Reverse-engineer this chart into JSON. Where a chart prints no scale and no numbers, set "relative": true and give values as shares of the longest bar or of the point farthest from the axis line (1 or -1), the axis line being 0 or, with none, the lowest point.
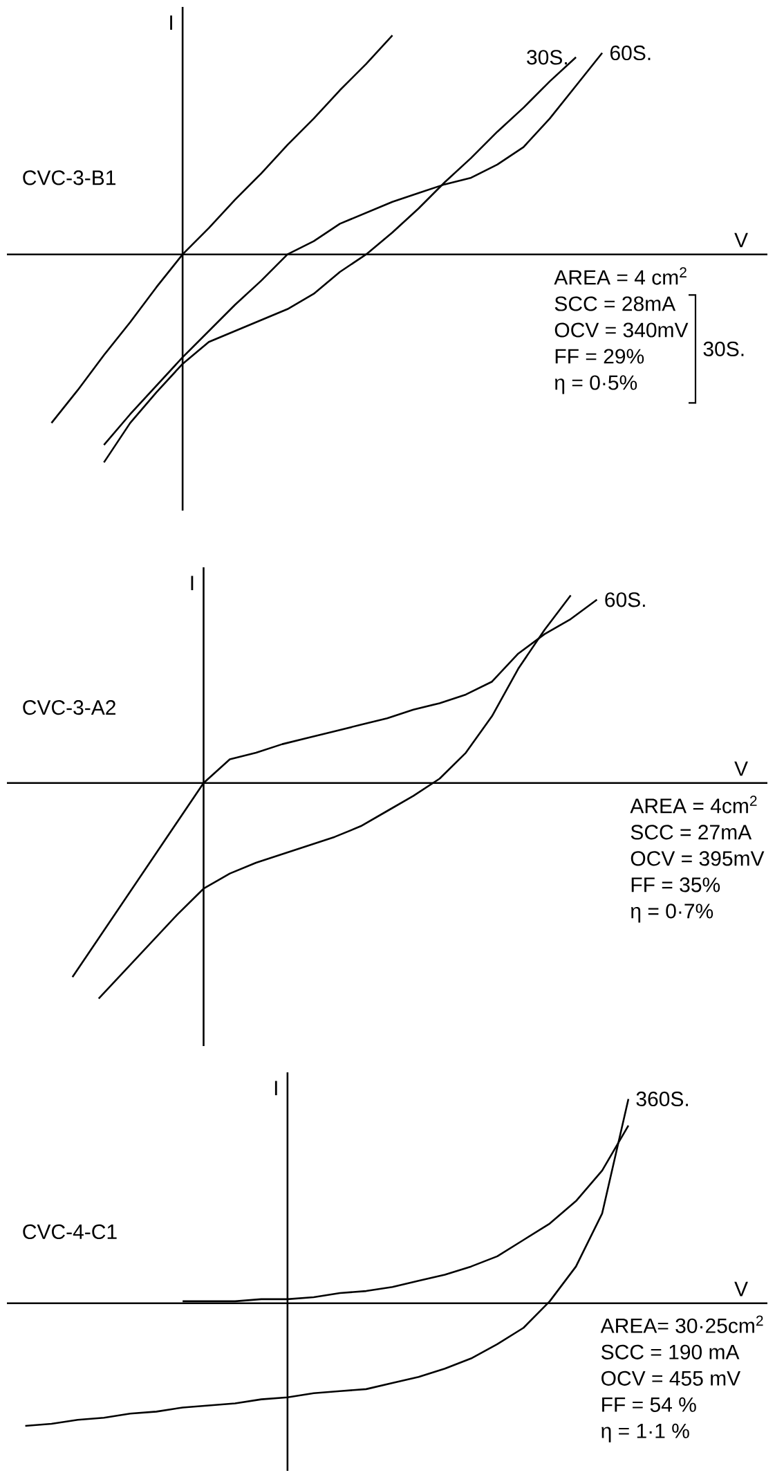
{
  "chart_data": [
    {
      "type": "line",
      "title": "CVC-3-B1",
      "xlabel": "V",
      "ylabel": "I",
      "relative": true,
      "categories": [
        null,
        null,
        null,
        null,
        null,
        null,
        null,
        null,
        null,
        null,
        null,
        null,
        null,
        null,
        null,
        null,
        null,
        null,
        null,
        null,
        null,
        null
      ],
      "series": [
        {
          "color": "#000000",
          "values": [
            -0.77,
            -0.62,
            -0.46,
            -0.31,
            -0.15,
            0,
            0.12,
            0.25,
            0.37,
            0.5,
            0.62,
            0.75,
            0.87,
            1.0,
            null,
            null,
            null,
            null,
            null,
            null,
            null,
            null
          ]
        },
        {
          "name": "30S.",
          "color": "#000000",
          "values": [
            null,
            null,
            -0.95,
            -0.77,
            -0.63,
            -0.5,
            -0.4,
            -0.35,
            -0.3,
            -0.25,
            -0.18,
            -0.08,
            0.0,
            0.1,
            0.21,
            0.33,
            0.44,
            0.56,
            0.67,
            0.79,
            0.9,
            null
          ]
        },
        {
          "name": "60S.",
          "color": "#000000",
          "values": [
            null,
            null,
            -0.87,
            -0.73,
            -0.6,
            -0.47,
            -0.35,
            -0.23,
            -0.12,
            0.0,
            0.06,
            0.14,
            0.19,
            0.24,
            0.28,
            0.32,
            0.35,
            0.41,
            0.49,
            0.62,
            0.77,
            0.92
          ]
        }
      ],
      "annotations": [
        "AREA = 4 cm$^{2}$",
        "SCC = 28mA",
        "OCV = 340mV",
        "FF = 29%",
        "η = 0·5%",
        "30S."
      ]
    },
    {
      "type": "line",
      "title": "CVC-3-A2",
      "xlabel": "V",
      "ylabel": "I",
      "relative": true,
      "categories": [
        null,
        null,
        null,
        null,
        null,
        null,
        null,
        null,
        null,
        null,
        null,
        null,
        null,
        null,
        null,
        null,
        null,
        null,
        null,
        null,
        null
      ],
      "series": [
        {
          "name": "60S.",
          "color": "#000000",
          "values": [
            -0.9,
            -0.72,
            -0.54,
            -0.36,
            -0.18,
            0,
            0.11,
            0.14,
            0.18,
            0.21,
            0.24,
            0.27,
            0.3,
            0.34,
            0.37,
            0.41,
            0.47,
            0.6,
            0.69,
            0.76,
            0.85
          ]
        },
        {
          "color": "#000000",
          "values": [
            null,
            -1.0,
            -0.87,
            -0.74,
            -0.61,
            -0.49,
            -0.42,
            -0.37,
            -0.33,
            -0.29,
            -0.25,
            -0.2,
            -0.13,
            -0.06,
            0.02,
            0.14,
            0.31,
            0.53,
            0.71,
            0.87,
            null
          ]
        }
      ],
      "annotations": [
        "AREA = 4cm$^{2}$",
        "SCC = 27mA",
        "OCV = 395mV",
        "FF = 35%",
        "η = 0·7%"
      ]
    },
    {
      "type": "line",
      "title": "CVC-4-C1",
      "xlabel": "V",
      "ylabel": "I",
      "relative": true,
      "categories": [
        null,
        null,
        null,
        null,
        null,
        null,
        null,
        null,
        null,
        null,
        null,
        null,
        null,
        null,
        null,
        null,
        null,
        null,
        null,
        null,
        null,
        null,
        null,
        null
      ],
      "series": [
        {
          "color": "#000000",
          "values": [
            null,
            null,
            null,
            null,
            null,
            null,
            0.01,
            0.01,
            0.01,
            0.02,
            0.02,
            0.03,
            0.05,
            0.06,
            0.08,
            0.11,
            0.14,
            0.18,
            0.23,
            0.31,
            0.39,
            0.5,
            0.65,
            0.87
          ]
        },
        {
          "name": "360S.",
          "color": "#000000",
          "values": [
            -0.6,
            -0.59,
            -0.57,
            -0.56,
            -0.54,
            -0.53,
            -0.51,
            -0.5,
            -0.49,
            -0.47,
            -0.46,
            -0.44,
            -0.43,
            -0.42,
            -0.39,
            -0.36,
            -0.32,
            -0.27,
            -0.2,
            -0.12,
            0.01,
            0.18,
            0.44,
            1.0
          ]
        }
      ],
      "annotations": [
        "AREA= 30·25cm$^{2}$",
        "SCC = 190 mA",
        "OCV = 455 mV",
        "FF = 54 %",
        "η = 1·1 %"
      ]
    }
  ]
}
